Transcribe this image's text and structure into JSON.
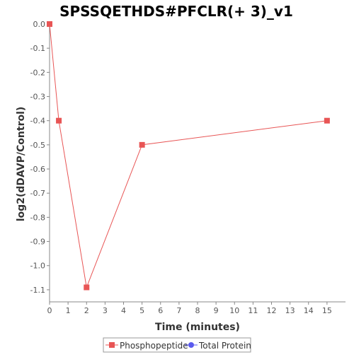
{
  "chart_data": {
    "type": "line",
    "title": "SPSSQETHDS#PFCLR(+ 3)_v1",
    "xlabel": "Time (minutes)",
    "ylabel": "log2(dDAVP/Control)",
    "xlim": [
      0,
      16
    ],
    "ylim": [
      -1.15,
      0.0
    ],
    "xticks": [
      0,
      1,
      2,
      3,
      4,
      5,
      6,
      7,
      8,
      9,
      10,
      11,
      12,
      13,
      14,
      15
    ],
    "yticks": [
      0.0,
      -0.1,
      -0.2,
      -0.3,
      -0.4,
      -0.5,
      -0.6,
      -0.7,
      -0.8,
      -0.9,
      -1.0,
      -1.1
    ],
    "ytick_labels": [
      "0.0",
      "-0.1",
      "-0.2",
      "-0.3",
      "-0.4",
      "-0.5",
      "-0.6",
      "-0.7",
      "-0.8",
      "-0.9",
      "-1.0",
      "-1.1"
    ],
    "grid": false,
    "legend_position": "bottom",
    "series": [
      {
        "name": "Phosphopeptide",
        "color": "#e85555",
        "marker": "square",
        "x": [
          0,
          0.5,
          2,
          5,
          15
        ],
        "y": [
          0.0,
          -0.4,
          -1.09,
          -0.5,
          -0.4
        ]
      },
      {
        "name": "Total Protein",
        "color": "#5a5aee",
        "marker": "circle",
        "x": [],
        "y": []
      }
    ]
  }
}
